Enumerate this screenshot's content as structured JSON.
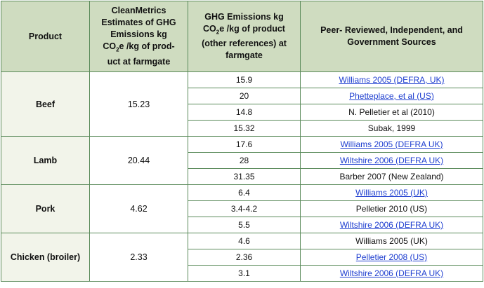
{
  "header": {
    "product": "Product",
    "clean_lines": [
      "CleanMetrics",
      "Estimates of GHG",
      "Emissions kg",
      "CO",
      "2",
      "e /kg of prod-",
      "uct at farmgate"
    ],
    "ghg_lines": [
      "GHG  Emissions kg",
      "CO",
      "2",
      "e /kg of  product",
      "(other references) at",
      "farmgate"
    ],
    "peer_lines": [
      "Peer-  Reviewed, Independent, and",
      "Government  Sources"
    ]
  },
  "groups": [
    {
      "product": "Beef",
      "estimate": "15.23",
      "rows": [
        {
          "value": "15.9",
          "source": "Williams 2005 (DEFRA, UK)",
          "link": true
        },
        {
          "value": "20",
          "source": "Phetteplace, et al (US)",
          "link": true
        },
        {
          "value": "14.8",
          "source": "N. Pelletier et al (2010)",
          "link": false
        },
        {
          "value": "15.32",
          "source": "Subak, 1999",
          "link": false
        }
      ]
    },
    {
      "product": "Lamb",
      "estimate": "20.44",
      "rows": [
        {
          "value": "17.6",
          "source": "Williams 2005 (DEFRA UK)",
          "link": true
        },
        {
          "value": "28",
          "source": "Wiltshire 2006 (DEFRA UK)",
          "link": true
        },
        {
          "value": "31.35",
          "source": "Barber 2007 (New Zealand)",
          "link": false
        }
      ]
    },
    {
      "product": "Pork",
      "estimate": "4.62",
      "rows": [
        {
          "value": "6.4",
          "source": "Williams 2005 (UK)",
          "link": true
        },
        {
          "value": "3.4-4.2",
          "source": "Pelletier 2010 (US)",
          "link": false
        },
        {
          "value": "5.5",
          "source": "Wiltshire 2006 (DEFRA UK)",
          "link": true
        }
      ]
    },
    {
      "product": "Chicken (broiler)",
      "estimate": "2.33",
      "rows": [
        {
          "value": "4.6",
          "source": "Williams 2005 (UK)",
          "link": false
        },
        {
          "value": "2.36",
          "source": "Pelletier 2008 (US)",
          "link": true
        },
        {
          "value": "3.1",
          "source": "Wiltshire 2006 (DEFRA UK)",
          "link": true
        }
      ]
    }
  ]
}
